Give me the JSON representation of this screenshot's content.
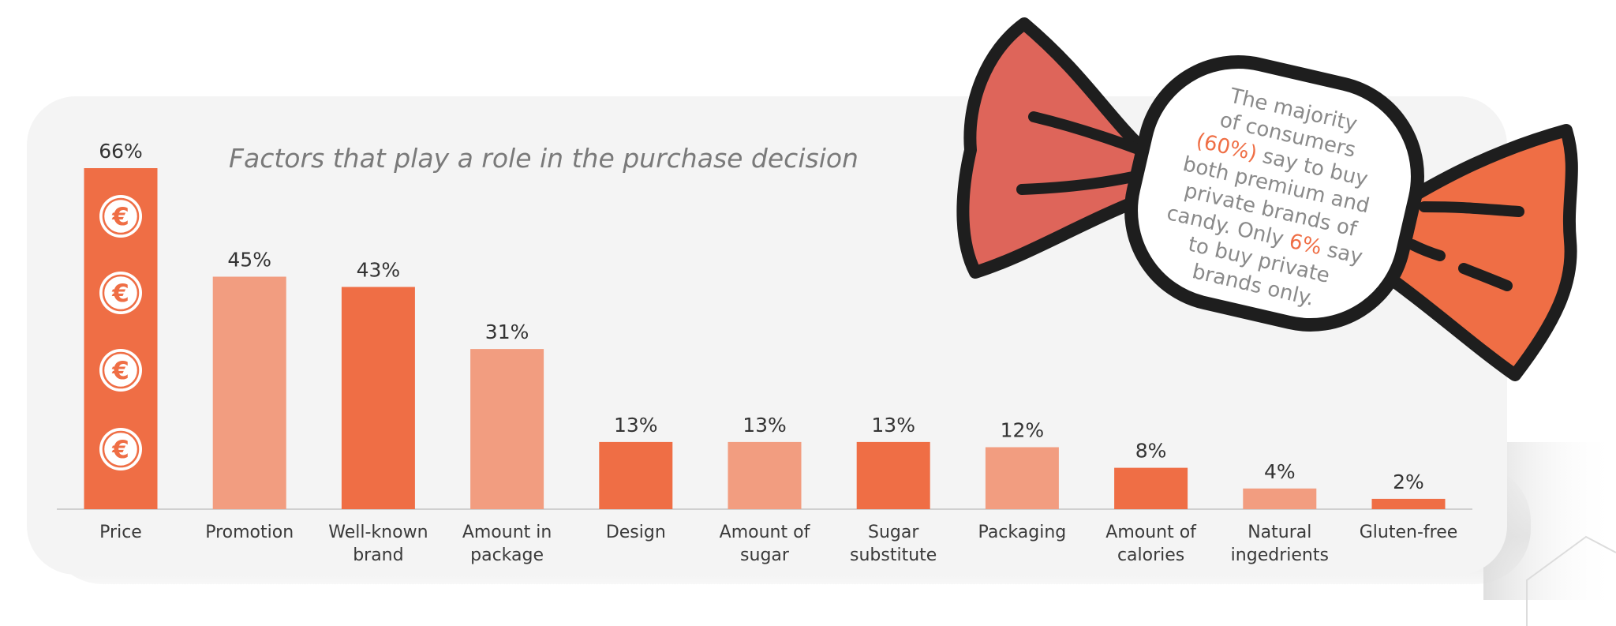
{
  "chart_data": {
    "type": "bar",
    "title": "Factors that play a role in the purchase decision",
    "categories": [
      [
        "Price"
      ],
      [
        "Promotion"
      ],
      [
        "Well-known",
        "brand"
      ],
      [
        "Amount in",
        "package"
      ],
      [
        "Design"
      ],
      [
        "Amount of",
        "sugar"
      ],
      [
        "Sugar",
        "substitute"
      ],
      [
        "Packaging"
      ],
      [
        "Amount of",
        "calories"
      ],
      [
        "Natural",
        "ingedrients"
      ],
      [
        "Gluten-free"
      ]
    ],
    "values": [
      66,
      45,
      43,
      31,
      13,
      13,
      13,
      12,
      8,
      4,
      2
    ],
    "value_labels": [
      "66%",
      "45%",
      "43%",
      "31%",
      "13%",
      "13%",
      "13%",
      "12%",
      "8%",
      "4%",
      "2%"
    ],
    "ylim": [
      0,
      66
    ],
    "unit": "%",
    "grid": false,
    "legend": "none",
    "bar_colors": [
      "#ef6e45",
      "#f29d80",
      "#ef6e45",
      "#f29d80",
      "#ef6e45",
      "#f29d80",
      "#ef6e45",
      "#f29d80",
      "#ef6e45",
      "#f29d80",
      "#ef6e45"
    ],
    "price_bar_icon": "euro-coin-icon",
    "price_bar_icon_count": 4,
    "xlabel": "",
    "ylabel": ""
  },
  "callout": {
    "icon": "candy-icon",
    "lines": [
      [
        {
          "t": "The majority"
        }
      ],
      [
        {
          "t": "of consumers"
        }
      ],
      [
        {
          "t": "(60%)",
          "accent": true
        },
        {
          "t": " say to buy"
        }
      ],
      [
        {
          "t": "both premium and"
        }
      ],
      [
        {
          "t": "private brands of"
        }
      ],
      [
        {
          "t": "candy. Only "
        },
        {
          "t": "6%",
          "accent": true
        },
        {
          "t": " say"
        }
      ],
      [
        {
          "t": "to buy private"
        }
      ],
      [
        {
          "t": "brands only."
        }
      ]
    ]
  },
  "colors": {
    "accent": "#ef6e45",
    "accent_light": "#f29d80",
    "candy_left": "#de655a",
    "candy_right": "#ef6e45",
    "outline": "#1e1e1e",
    "panel": "#f4f4f4",
    "text": "#333333",
    "title": "#7a7a7a"
  }
}
